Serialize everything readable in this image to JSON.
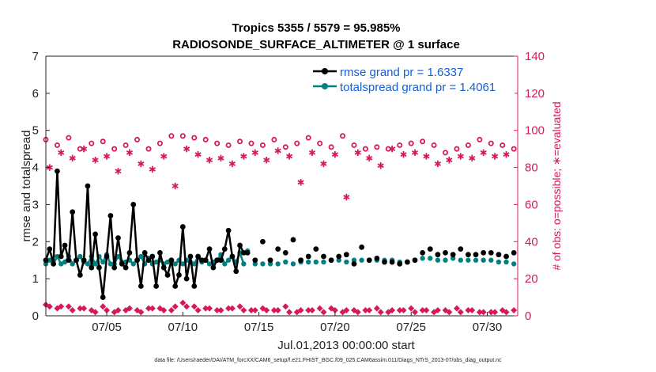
{
  "chart_data": {
    "type": "line",
    "title": "Tropics 5355 / 5579 = 95.985%",
    "subtitle": "RADIOSONDE_SURFACE_ALTIMETER @ 1 surface",
    "xlabel": "Jul.01,2013 00:00:00 start",
    "ylabel": "rmse and totalspread",
    "ylabel_right": "# of obs: o=possible; ∗=evaluated",
    "xlim": [
      1,
      32
    ],
    "ylim": [
      0,
      7
    ],
    "ylim_right": [
      0,
      140
    ],
    "x_ticks": [
      {
        "x": 5,
        "label": "07/05"
      },
      {
        "x": 10,
        "label": "07/10"
      },
      {
        "x": 15,
        "label": "07/15"
      },
      {
        "x": 20,
        "label": "07/20"
      },
      {
        "x": 25,
        "label": "07/25"
      },
      {
        "x": 30,
        "label": "07/30"
      }
    ],
    "y_ticks": [
      "0",
      "1",
      "2",
      "3",
      "4",
      "5",
      "6",
      "7"
    ],
    "y_ticks_right": [
      "0",
      "20",
      "40",
      "60",
      "80",
      "100",
      "120",
      "140"
    ],
    "legend": [
      {
        "name": "rmse",
        "label": "rmse grand pr = 1.6337",
        "color": "#000000"
      },
      {
        "name": "totalspread",
        "label": "totalspread grand pr = 1.4061",
        "color": "#008080"
      }
    ],
    "legend_position": "top-right",
    "footer": "data file: /Users/raeder/DAI/ATM_forcXX/CAM6_setup/f.e21.FHIST_BGC.f09_025.CAM6assim.011/Diags_NTrS_2013-07/obs_diag_output.nc",
    "series": [
      {
        "name": "rmse",
        "color": "#000000",
        "x": [
          1.0,
          1.25,
          1.5,
          1.75,
          2.0,
          2.25,
          2.5,
          2.75,
          3.0,
          3.25,
          3.5,
          3.75,
          4.0,
          4.25,
          4.5,
          4.75,
          5.0,
          5.25,
          5.5,
          5.75,
          6.0,
          6.25,
          6.5,
          6.75,
          7.0,
          7.25,
          7.5,
          7.75,
          8.0,
          8.25,
          8.5,
          8.75,
          9.0,
          9.25,
          9.5,
          9.75,
          10.0,
          10.25,
          10.5,
          10.75,
          11.0,
          11.25,
          11.5,
          11.75,
          12.0,
          12.25,
          12.5,
          12.75,
          13.0,
          13.25,
          13.5,
          13.75,
          14.0
        ],
        "values": [
          1.5,
          1.8,
          1.4,
          3.9,
          1.6,
          1.9,
          1.5,
          2.8,
          1.5,
          1.1,
          1.5,
          3.5,
          1.3,
          2.2,
          1.3,
          0.5,
          1.6,
          2.7,
          1.3,
          2.1,
          1.4,
          1.3,
          1.7,
          3.0,
          1.5,
          0.8,
          1.7,
          1.5,
          1.6,
          0.8,
          1.7,
          1.3,
          1.1,
          1.5,
          0.8,
          1.1,
          2.4,
          1.0,
          1.6,
          0.8,
          1.6,
          1.5,
          1.5,
          1.8,
          1.3,
          1.5,
          1.5,
          1.8,
          2.3,
          1.6,
          1.2,
          1.9,
          1.7
        ]
      },
      {
        "name": "rmse_sparse",
        "color": "#000000",
        "x": [
          14.25,
          14.75,
          15.25,
          15.75,
          16.25,
          16.75,
          17.25,
          17.75,
          18.25,
          18.75,
          19.25,
          19.75,
          20.25,
          20.75,
          21.25,
          21.75,
          22.25,
          22.75,
          23.25,
          23.75,
          24.25,
          24.75,
          25.25,
          25.75,
          26.25,
          26.75,
          27.25,
          27.75,
          28.25,
          28.75,
          29.25,
          29.75,
          30.25,
          30.75,
          31.25,
          31.75
        ],
        "values": [
          1.7,
          1.5,
          2.0,
          1.5,
          1.8,
          1.7,
          2.05,
          1.5,
          1.6,
          1.8,
          1.6,
          1.5,
          1.6,
          1.65,
          1.4,
          1.85,
          1.5,
          1.55,
          1.45,
          1.45,
          1.4,
          1.45,
          1.5,
          1.7,
          1.8,
          1.65,
          1.7,
          1.65,
          1.8,
          1.65,
          1.65,
          1.7,
          1.7,
          1.65,
          1.6,
          1.7
        ]
      },
      {
        "name": "totalspread",
        "color": "#008080",
        "x": [
          1.0,
          1.25,
          1.5,
          1.75,
          2.0,
          2.25,
          2.5,
          2.75,
          3.0,
          3.25,
          3.5,
          3.75,
          4.0,
          4.25,
          4.5,
          4.75,
          5.0,
          5.25,
          5.5,
          5.75,
          6.0,
          6.25,
          6.5,
          6.75,
          7.0,
          7.25,
          7.5,
          7.75,
          8.0,
          8.25,
          8.5,
          8.75,
          9.0,
          9.25,
          9.5,
          9.75,
          10.0,
          10.25,
          10.5,
          10.75,
          11.0,
          11.25,
          11.5,
          11.75,
          12.0,
          12.25,
          12.5,
          12.75,
          13.0,
          13.25,
          13.5,
          13.75,
          14.0
        ],
        "values": [
          1.4,
          1.5,
          1.4,
          1.6,
          1.4,
          1.45,
          1.6,
          1.4,
          1.5,
          1.6,
          1.45,
          1.4,
          1.6,
          1.4,
          1.6,
          1.45,
          1.65,
          1.4,
          1.4,
          1.6,
          1.45,
          1.45,
          1.5,
          1.4,
          1.5,
          1.6,
          1.4,
          1.55,
          1.4,
          1.45,
          1.5,
          1.4,
          1.45,
          1.5,
          1.4,
          1.5,
          1.4,
          1.5,
          1.45,
          1.4,
          1.6,
          1.45,
          1.5,
          1.4,
          1.45,
          1.5,
          1.65,
          1.4,
          1.5,
          1.6,
          1.45,
          1.7,
          1.4
        ]
      },
      {
        "name": "totalspread_sparse",
        "color": "#008080",
        "x": [
          14.25,
          14.75,
          15.25,
          15.75,
          16.25,
          16.75,
          17.25,
          17.75,
          18.25,
          18.75,
          19.25,
          19.75,
          20.25,
          20.75,
          21.25,
          21.75,
          22.25,
          22.75,
          23.25,
          23.75,
          24.25,
          24.75,
          25.25,
          25.75,
          26.25,
          26.75,
          27.25,
          27.75,
          28.25,
          28.75,
          29.25,
          29.75,
          30.25,
          30.75,
          31.25,
          31.75
        ],
        "values": [
          1.75,
          1.4,
          1.4,
          1.4,
          1.4,
          1.45,
          1.4,
          1.45,
          1.45,
          1.45,
          1.45,
          1.5,
          1.5,
          1.45,
          1.5,
          1.5,
          1.5,
          1.5,
          1.5,
          1.5,
          1.45,
          1.45,
          1.5,
          1.55,
          1.55,
          1.5,
          1.5,
          1.55,
          1.5,
          1.5,
          1.5,
          1.5,
          1.5,
          1.45,
          1.45,
          1.4
        ]
      },
      {
        "name": "obs_possible",
        "color": "#d6195a",
        "axis": "right",
        "x": [
          1.0,
          1.75,
          2.5,
          3.25,
          4.0,
          4.75,
          5.5,
          6.25,
          7.0,
          7.75,
          8.5,
          9.25,
          10.0,
          10.75,
          11.5,
          12.25,
          13.0,
          13.75,
          14.5,
          15.25,
          16.0,
          16.75,
          17.5,
          18.25,
          19.0,
          19.75,
          20.5,
          21.25,
          22.0,
          22.75,
          23.5,
          24.25,
          25.0,
          25.75,
          26.5,
          27.25,
          28.0,
          28.75,
          29.5,
          30.25,
          31.0,
          31.75
        ],
        "values": [
          95,
          92,
          96,
          90,
          93,
          94,
          90,
          92,
          95,
          90,
          93,
          97,
          97,
          96,
          95,
          93,
          92,
          94,
          93,
          92,
          95,
          91,
          93,
          96,
          93,
          91,
          97,
          92,
          90,
          91,
          90,
          92,
          93,
          94,
          92,
          88,
          90,
          92,
          95,
          93,
          92,
          90
        ]
      },
      {
        "name": "obs_evaluated",
        "color": "#d6195a",
        "axis": "right",
        "x": [
          1.25,
          2.0,
          2.75,
          3.5,
          4.25,
          5.0,
          5.75,
          6.5,
          7.25,
          8.0,
          8.75,
          9.5,
          10.25,
          11.0,
          11.75,
          12.5,
          13.25,
          14.0,
          14.75,
          15.5,
          16.25,
          17.0,
          17.75,
          18.5,
          19.25,
          20.0,
          20.75,
          21.5,
          22.25,
          23.0,
          23.75,
          24.5,
          25.25,
          26.0,
          26.75,
          27.5,
          28.25,
          29.0,
          29.75,
          30.5,
          31.25
        ],
        "values": [
          80,
          88,
          85,
          90,
          84,
          86,
          78,
          88,
          82,
          79,
          86,
          70,
          90,
          87,
          84,
          85,
          82,
          86,
          88,
          84,
          89,
          86,
          72,
          88,
          82,
          87,
          64,
          88,
          85,
          81,
          90,
          87,
          88,
          86,
          82,
          84,
          86,
          85,
          88,
          86,
          87
        ]
      },
      {
        "name": "obs_possible_low",
        "color": "#d6195a",
        "axis": "right",
        "x": [
          1.0,
          1.75,
          2.5,
          3.25,
          4.0,
          4.75,
          5.5,
          6.25,
          7.0,
          7.75,
          8.5,
          9.25,
          10.0,
          10.75,
          11.5,
          12.25,
          13.0,
          13.75,
          14.5,
          15.25,
          16.0,
          16.75,
          17.5,
          18.25,
          19.0,
          19.75,
          20.5,
          21.25,
          22.0,
          22.75,
          23.5,
          24.25,
          25.0,
          25.75,
          26.5,
          27.25,
          28.0,
          28.75,
          29.5,
          30.25,
          31.0,
          31.75
        ],
        "values": [
          6,
          4,
          5,
          4,
          3,
          5,
          2,
          3,
          3,
          4,
          4,
          3,
          7,
          5,
          4,
          3,
          4,
          5,
          3,
          4,
          3,
          5,
          2,
          3,
          4,
          4,
          2,
          3,
          3,
          4,
          2,
          3,
          4,
          3,
          2,
          3,
          4,
          3,
          2,
          2,
          3,
          3
        ]
      },
      {
        "name": "obs_evaluated_low",
        "color": "#d6195a",
        "axis": "right",
        "x": [
          1.25,
          2.0,
          2.75,
          3.5,
          4.25,
          5.0,
          5.75,
          6.5,
          7.25,
          8.0,
          8.75,
          9.5,
          10.25,
          11.0,
          11.75,
          12.5,
          13.25,
          14.0,
          14.75,
          15.5,
          16.25,
          17.0,
          17.75,
          18.5,
          19.25,
          20.0,
          20.75,
          21.5,
          22.25,
          23.0,
          23.75,
          24.5,
          25.25,
          26.0,
          26.75,
          27.5,
          28.25,
          29.0,
          29.75,
          30.5,
          31.25
        ],
        "values": [
          5,
          5,
          3,
          4,
          2,
          3,
          3,
          4,
          2,
          4,
          3,
          5,
          5,
          3,
          4,
          3,
          4,
          3,
          3,
          3,
          3,
          2,
          3,
          3,
          2,
          3,
          3,
          2,
          3,
          2,
          3,
          3,
          2,
          3,
          3,
          2,
          2,
          3,
          2,
          2,
          2
        ]
      }
    ]
  }
}
